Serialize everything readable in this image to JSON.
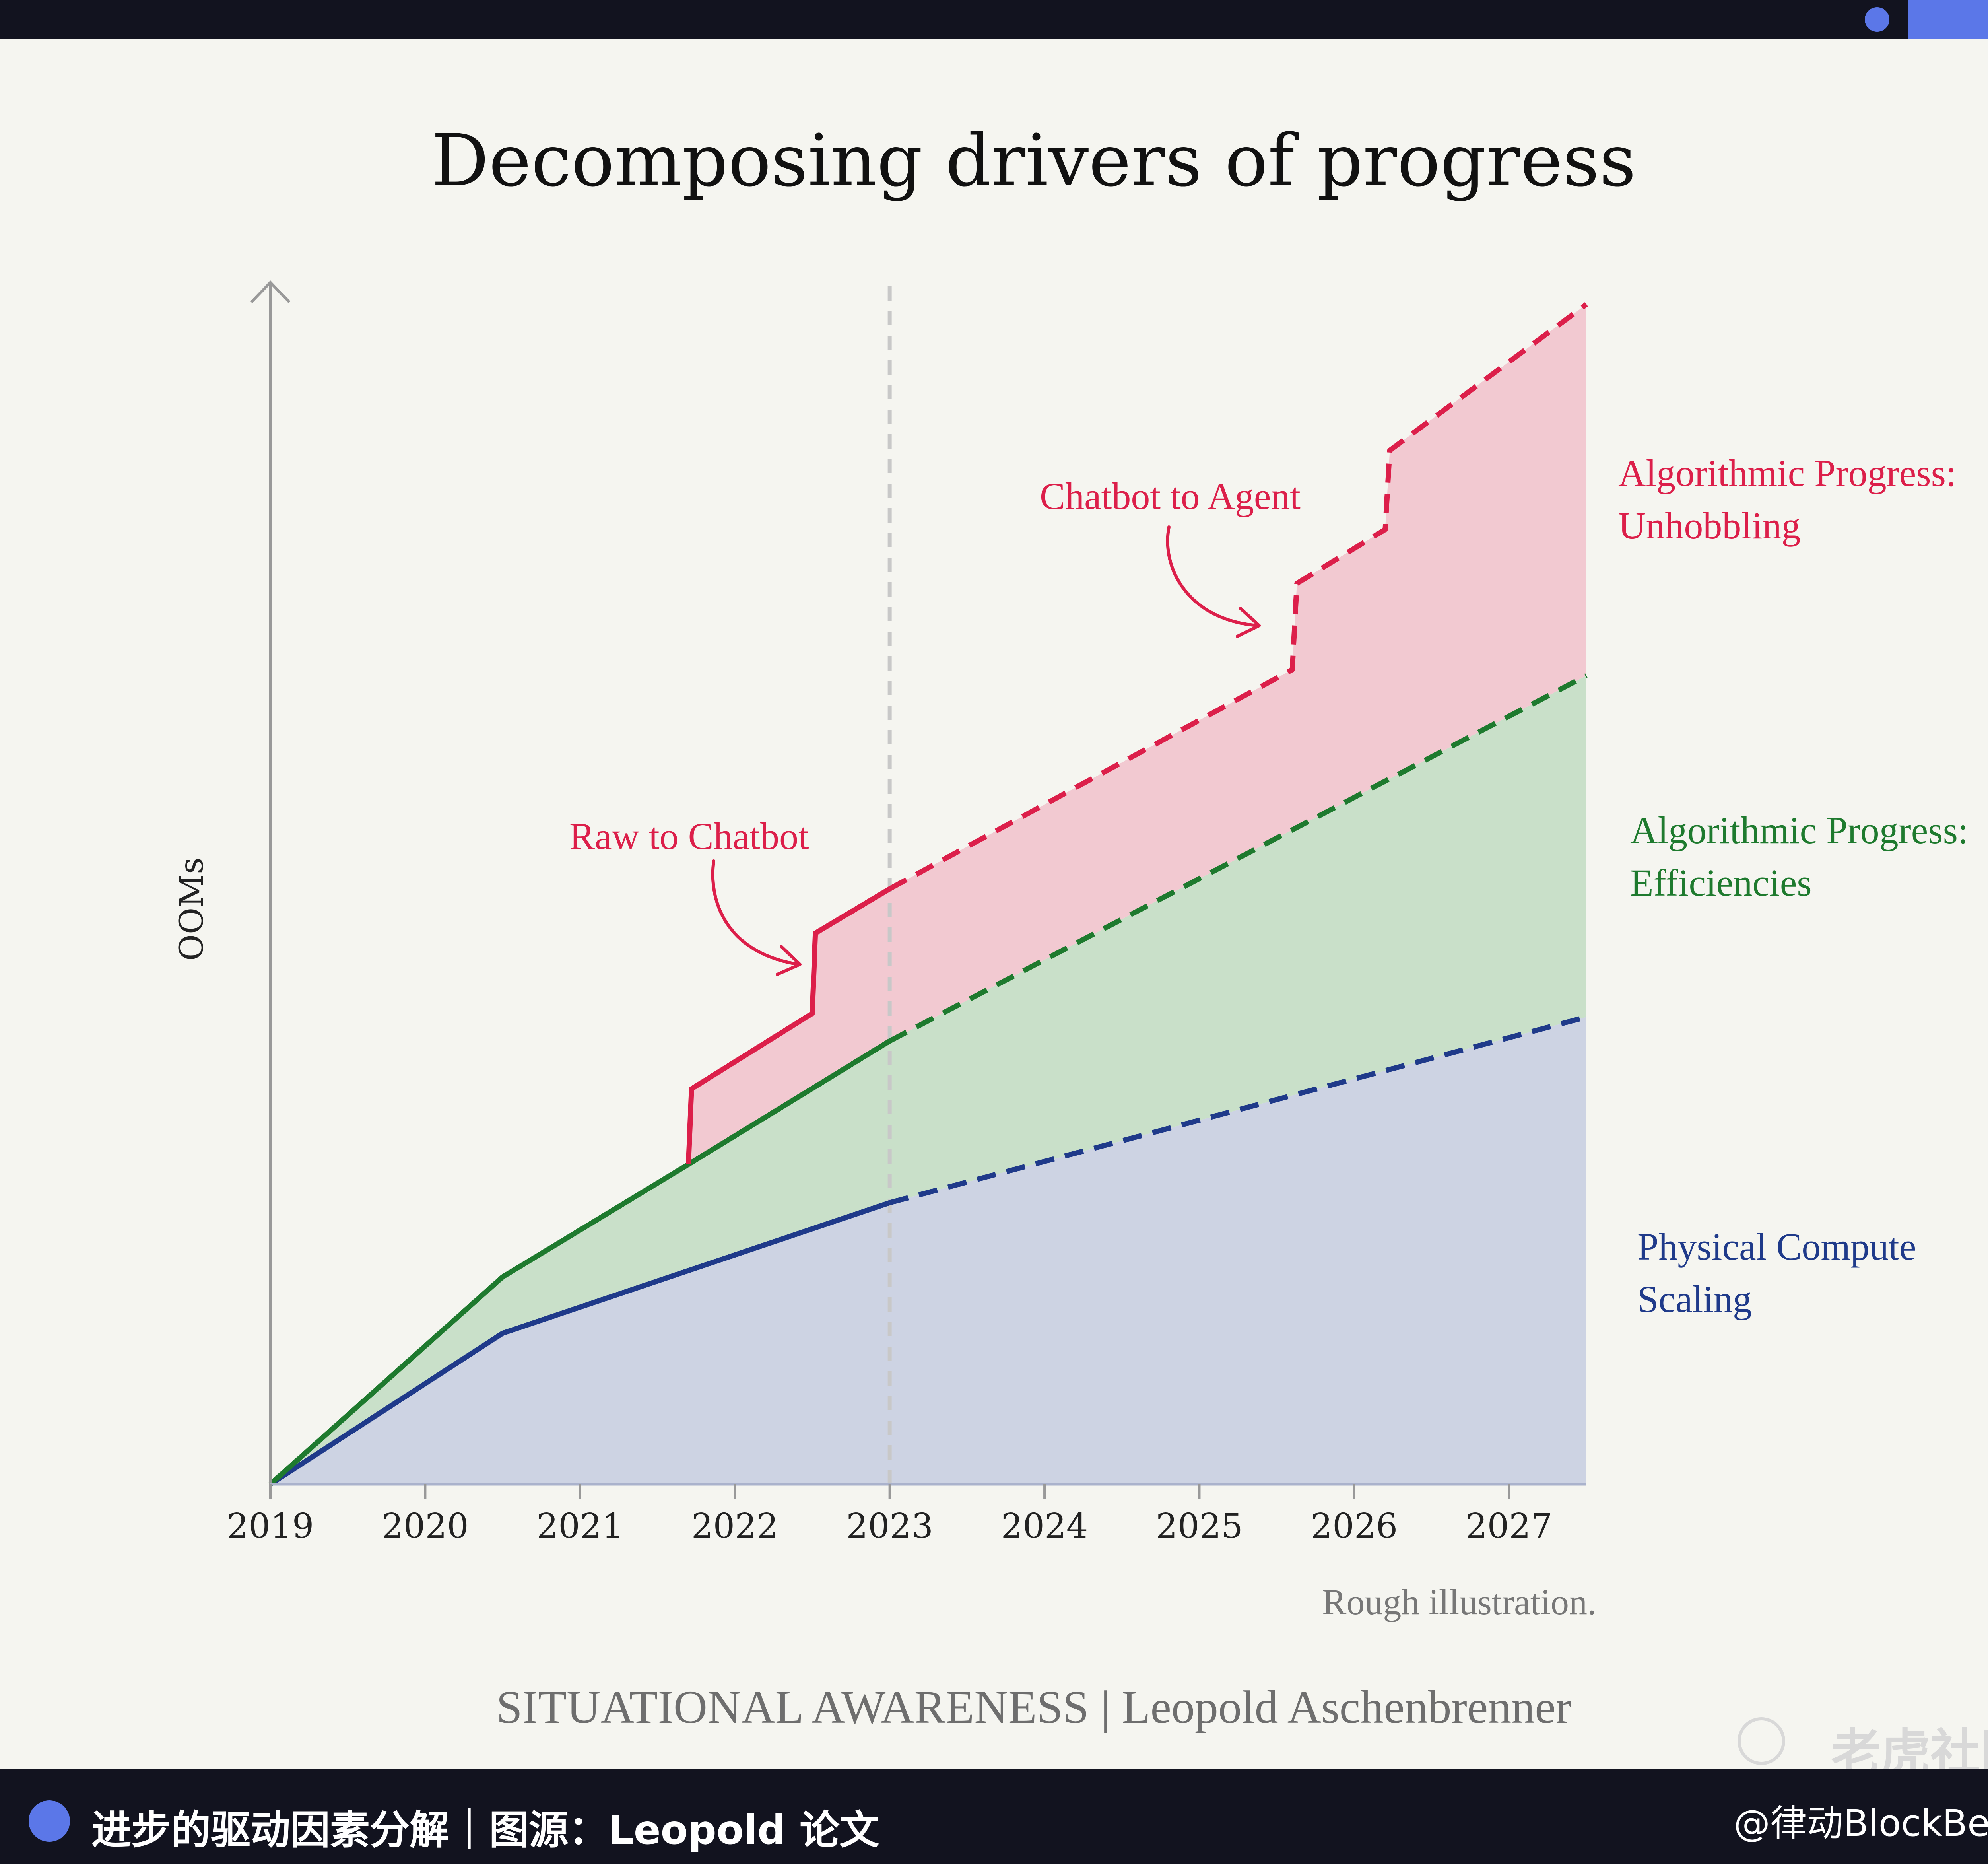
{
  "chart_data": {
    "type": "area",
    "title": "Decomposing drivers of progress",
    "ylabel": "OOMs",
    "xlabel": "",
    "x_ticks": [
      "2019",
      "2020",
      "2021",
      "2022",
      "2023",
      "2024",
      "2025",
      "2026",
      "2027"
    ],
    "xlim": [
      2019,
      2027.5
    ],
    "ylim": [
      0,
      10
    ],
    "divider_x": 2023,
    "note": "Rough illustration.",
    "series": [
      {
        "name": "Physical Compute Scaling",
        "label_lines": [
          "Physical Compute",
          "Scaling"
        ],
        "color": "#1f3a8a",
        "fill": "#cdd3e3",
        "points": [
          [
            2019,
            0
          ],
          [
            2020.5,
            1.26
          ],
          [
            2023,
            2.35
          ],
          [
            2027.5,
            3.9
          ]
        ]
      },
      {
        "name": "Algorithmic Progress: Efficiencies",
        "label_lines": [
          "Algorithmic Progress:",
          "Efficiencies"
        ],
        "color": "#1e7a2e",
        "fill": "#c9e0c9",
        "points": [
          [
            2019,
            0
          ],
          [
            2020.5,
            1.73
          ],
          [
            2021.7,
            2.67
          ],
          [
            2023,
            3.7
          ],
          [
            2027.5,
            6.75
          ]
        ]
      },
      {
        "name": "Algorithmic Progress: Unhobbling",
        "label_lines": [
          "Algorithmic Progress:",
          "Unhobbling"
        ],
        "color": "#dc1f4a",
        "fill": "#f2c9d1",
        "points": [
          [
            2021.7,
            2.67
          ],
          [
            2021.72,
            3.3
          ],
          [
            2022.5,
            3.93
          ],
          [
            2022.52,
            4.6
          ],
          [
            2023,
            4.97
          ],
          [
            2025.6,
            6.8
          ],
          [
            2025.63,
            7.52
          ],
          [
            2026.2,
            7.97
          ],
          [
            2026.23,
            8.63
          ],
          [
            2027.5,
            9.85
          ]
        ]
      }
    ],
    "annotations": [
      {
        "text": "Raw to Chatbot",
        "color": "#dc1f4a"
      },
      {
        "text": "Chatbot to Agent",
        "color": "#dc1f4a"
      }
    ]
  },
  "credit": "SITUATIONAL AWARENESS | Leopold Aschenbrenner",
  "watermark": "老虎社区",
  "caption": "进步的驱动因素分解｜图源：Leopold 论文",
  "source": "@律动BlockBeats",
  "colors": {
    "bar": "#12131f",
    "accent": "#5b77e8",
    "background": "#f5f5f0"
  }
}
